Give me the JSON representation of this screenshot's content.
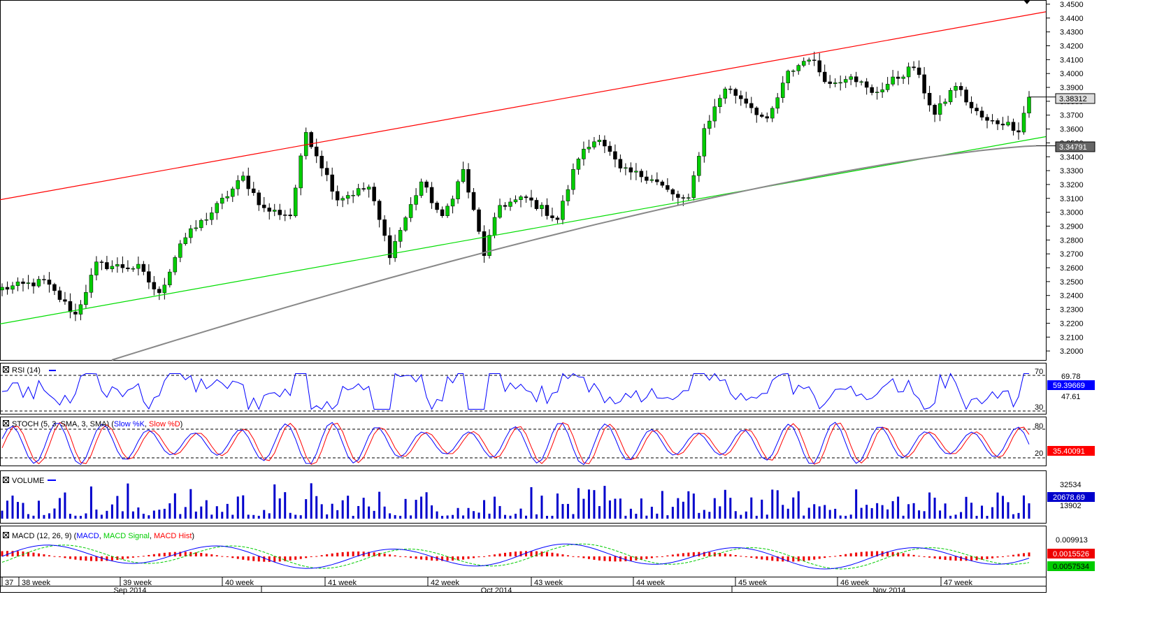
{
  "chart_data": {
    "type": "candlestick",
    "main": {
      "y_ticks": [
        "3.4500",
        "3.4400",
        "3.4300",
        "3.4200",
        "3.4100",
        "3.4000",
        "3.3900",
        "3.3800",
        "3.3700",
        "3.3600",
        "3.3500",
        "3.3400",
        "3.3300",
        "3.3200",
        "3.3100",
        "3.3000",
        "3.2900",
        "3.2800",
        "3.2700",
        "3.2600",
        "3.2500",
        "3.2400",
        "3.2300",
        "3.2200",
        "3.2100",
        "3.2000"
      ],
      "ylim": [
        3.1935,
        3.4525
      ],
      "price_badge": "3.38312",
      "ma_badge": "3.34791",
      "candles": {
        "count": 197,
        "anchors": [
          [
            0,
            3.245
          ],
          [
            8,
            3.25
          ],
          [
            14,
            3.226
          ],
          [
            18,
            3.262
          ],
          [
            26,
            3.26
          ],
          [
            30,
            3.24
          ],
          [
            34,
            3.278
          ],
          [
            40,
            3.3
          ],
          [
            46,
            3.325
          ],
          [
            50,
            3.302
          ],
          [
            55,
            3.298
          ],
          [
            58,
            3.358
          ],
          [
            64,
            3.31
          ],
          [
            70,
            3.318
          ],
          [
            74,
            3.27
          ],
          [
            80,
            3.322
          ],
          [
            84,
            3.295
          ],
          [
            88,
            3.33
          ],
          [
            92,
            3.27
          ],
          [
            95,
            3.305
          ],
          [
            100,
            3.31
          ],
          [
            106,
            3.295
          ],
          [
            110,
            3.34
          ],
          [
            114,
            3.355
          ],
          [
            118,
            3.33
          ],
          [
            124,
            3.325
          ],
          [
            128,
            3.312
          ],
          [
            131,
            3.308
          ],
          [
            134,
            3.36
          ],
          [
            138,
            3.39
          ],
          [
            142,
            3.38
          ],
          [
            146,
            3.365
          ],
          [
            150,
            3.4
          ],
          [
            154,
            3.412
          ],
          [
            158,
            3.392
          ],
          [
            162,
            3.4
          ],
          [
            166,
            3.385
          ],
          [
            170,
            3.395
          ],
          [
            174,
            3.405
          ],
          [
            178,
            3.37
          ],
          [
            182,
            3.392
          ],
          [
            185,
            3.375
          ],
          [
            188,
            3.365
          ],
          [
            191,
            3.365
          ],
          [
            194,
            3.36
          ],
          [
            196,
            3.383
          ]
        ],
        "noise": 0.006
      }
    },
    "rsi": {
      "label": "RSI (14)",
      "levels": [
        "70",
        "30"
      ],
      "right_labels": [
        "69.78",
        "47.61"
      ],
      "badge": "59.39669"
    },
    "stoch": {
      "label_prefix": "STOCH (5, 3, SMA, 3, SMA) (",
      "label_k": "Slow %K",
      "label_d": "Slow %D",
      "label_suffix": ")",
      "levels": [
        "80",
        "20"
      ],
      "badge": "35.40091"
    },
    "volume": {
      "label": "VOLUME",
      "right_labels": [
        "32534",
        "13902"
      ],
      "badge": "20678.69"
    },
    "macd": {
      "label_prefix": "MACD (12, 26, 9) (",
      "label_macd": "MACD",
      "label_signal": "MACD Signal",
      "label_hist": "MACD Hist",
      "label_suffix": ")",
      "right_label": "0.009913",
      "badge_hist": "0.0015526",
      "badge_macd": "0.0057534"
    },
    "x_axis": {
      "weeks": [
        "37",
        "38 week",
        "39 week",
        "40 week",
        "41 week",
        "42 week",
        "43 week",
        "44 week",
        "45 week",
        "46 week",
        "47 week"
      ],
      "months": [
        "Sep 2014",
        "Oct 2014",
        "Nov 2014"
      ]
    },
    "trendlines": {
      "upper_color": "#ff0000",
      "lower_color": "#00dd00",
      "ma_color": "#888888"
    },
    "colors": {
      "bull": "#00cc00",
      "bear": "#000000",
      "rsi": "#0000ff",
      "stoch_k": "#0000ff",
      "stoch_d": "#ff0000",
      "volume": "#0000cc",
      "macd": "#0000ff",
      "signal": "#00cc00",
      "hist": "#ee0000"
    }
  }
}
